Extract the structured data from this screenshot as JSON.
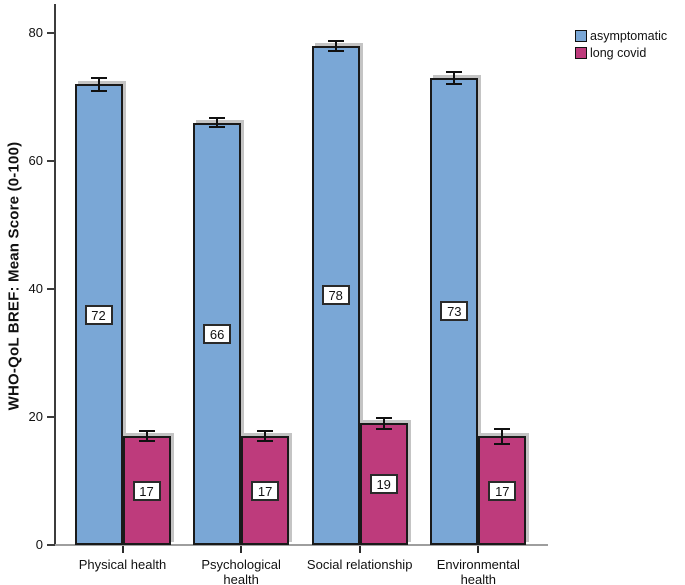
{
  "figure": {
    "background": "#ffffff",
    "axis_color": "#3c3c3c",
    "baseline_color": "#9e9e9e"
  },
  "chart_data": {
    "type": "bar",
    "title": "",
    "xlabel": "",
    "ylabel": "WHO-QoL BREF: Mean Score (0-100)",
    "categories": [
      "Physical health",
      "Psychological health",
      "Social relationship",
      "Environmental health"
    ],
    "category_label_lines": [
      [
        "Physical health"
      ],
      [
        "Psychological",
        "health"
      ],
      [
        "Social relationship"
      ],
      [
        "Environmental",
        "health"
      ]
    ],
    "series": [
      {
        "name": "asymptomatic",
        "color": "#7AA7D6",
        "values": [
          72,
          66,
          78,
          73
        ],
        "errors": [
          1.0,
          0.7,
          0.8,
          0.9
        ]
      },
      {
        "name": "long covid",
        "color": "#BE3B7C",
        "values": [
          17,
          17,
          19,
          17
        ],
        "errors": [
          0.8,
          0.8,
          0.9,
          1.2
        ]
      }
    ],
    "bar_value_labels_boxed": true,
    "error_bars": true,
    "y_ticks": [
      0,
      20,
      40,
      60,
      80
    ],
    "ylim": [
      0,
      84
    ],
    "grid": false,
    "legend": {
      "position": "top-right",
      "entries": [
        "asymptomatic",
        "long covid"
      ]
    }
  }
}
